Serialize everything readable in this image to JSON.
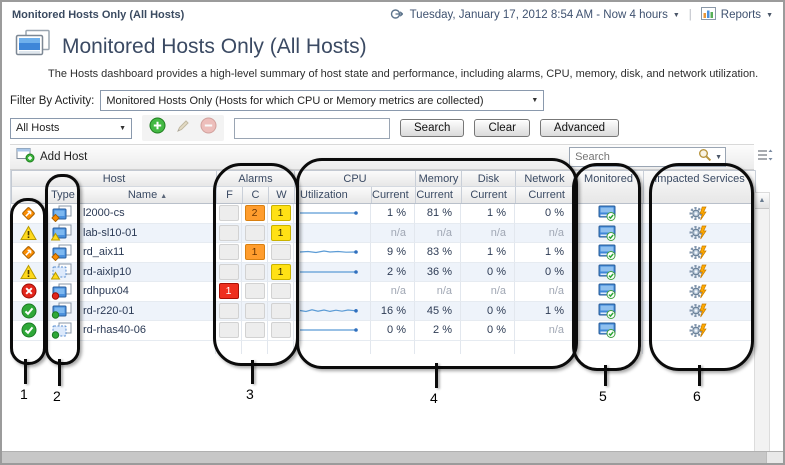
{
  "breadcrumb": {
    "label": "Monitored Hosts Only (All Hosts)"
  },
  "header": {
    "time_range": "Tuesday, January 17, 2012 8:54 AM - Now 4 hours",
    "reports": "Reports"
  },
  "page": {
    "title": "Monitored Hosts Only (All Hosts)",
    "description": "The Hosts dashboard provides a high-level summary of host state and performance, including alarms, CPU, memory, disk, and network utilization."
  },
  "filter": {
    "label": "Filter By Activity:",
    "value": "Monitored Hosts Only (Hosts for which CPU or Memory metrics are collected)"
  },
  "toolbar": {
    "scope": "All Hosts",
    "filter_value": "",
    "search": "Search",
    "clear": "Clear",
    "advanced": "Advanced"
  },
  "table_toolbar": {
    "add_host": "Add Host",
    "search_placeholder": "Search"
  },
  "table": {
    "groups": {
      "host": "Host",
      "alarms": "Alarms",
      "cpu": "CPU",
      "memory": "Memory",
      "disk": "Disk",
      "network": "Network",
      "monitored": "Monitored",
      "impacted": "Impacted Services"
    },
    "columns": {
      "type": "Type",
      "name": "Name",
      "sort": "▲",
      "f": "F",
      "c": "C",
      "w": "W",
      "utilization": "Utilization",
      "current": "Current"
    },
    "rows": [
      {
        "name": "l2000-cs",
        "status": "critical",
        "type": "physical",
        "badge": "critical",
        "f": "",
        "c": "2",
        "w": "1",
        "spark": "flat",
        "cpu": "1 %",
        "memory": "81 %",
        "disk": "1 %",
        "network": "0 %"
      },
      {
        "name": "lab-sl10-01",
        "status": "warning",
        "type": "physical",
        "badge": "warning",
        "f": "",
        "c": "",
        "w": "1",
        "spark": null,
        "cpu": "n/a",
        "memory": "n/a",
        "disk": "n/a",
        "network": "n/a"
      },
      {
        "name": "rd_aix11",
        "status": "critical",
        "type": "physical",
        "badge": "critical",
        "f": "",
        "c": "1",
        "w": "",
        "spark": "bumpy",
        "cpu": "9 %",
        "memory": "83 %",
        "disk": "1 %",
        "network": "1 %"
      },
      {
        "name": "rd-aixlp10",
        "status": "warning",
        "type": "virtual",
        "badge": "warning",
        "f": "",
        "c": "",
        "w": "1",
        "spark": "flat",
        "cpu": "2 %",
        "memory": "36 %",
        "disk": "0 %",
        "network": "0 %"
      },
      {
        "name": "rdhpux04",
        "status": "fatal",
        "type": "physical",
        "badge": "fatal",
        "f": "1",
        "c": "",
        "w": "",
        "spark": null,
        "cpu": "n/a",
        "memory": "n/a",
        "disk": "n/a",
        "network": "n/a"
      },
      {
        "name": "rd-r220-01",
        "status": "normal",
        "type": "physical",
        "badge": "normal",
        "f": "",
        "c": "",
        "w": "",
        "spark": "wavy",
        "cpu": "16 %",
        "memory": "45 %",
        "disk": "0 %",
        "network": "1 %"
      },
      {
        "name": "rd-rhas40-06",
        "status": "normal",
        "type": "virtual",
        "badge": "normal",
        "f": "",
        "c": "",
        "w": "",
        "spark": "flat",
        "cpu": "0 %",
        "memory": "2 %",
        "disk": "0 %",
        "network": "n/a"
      }
    ]
  },
  "sparkline_shapes": {
    "flat": [
      [
        2,
        8
      ],
      [
        16,
        8
      ],
      [
        30,
        8
      ],
      [
        44,
        8
      ],
      [
        58,
        8
      ]
    ],
    "bumpy": [
      [
        2,
        8
      ],
      [
        10,
        7.5
      ],
      [
        18,
        8.5
      ],
      [
        26,
        7
      ],
      [
        32,
        8
      ],
      [
        40,
        7.5
      ],
      [
        48,
        8.2
      ],
      [
        58,
        8
      ]
    ],
    "wavy": [
      [
        2,
        7.5
      ],
      [
        8,
        8.5
      ],
      [
        14,
        6.8
      ],
      [
        20,
        8.2
      ],
      [
        26,
        7
      ],
      [
        32,
        8.4
      ],
      [
        38,
        7.2
      ],
      [
        44,
        8.2
      ],
      [
        50,
        7
      ],
      [
        58,
        7.8
      ]
    ]
  },
  "callouts": {
    "labels": [
      "1",
      "2",
      "3",
      "4",
      "5",
      "6"
    ]
  },
  "colors": {
    "accent_blue": "#3e86d8",
    "fatal": "#ee2e1e",
    "critical": "#ff9d2e",
    "warning": "#ffe115",
    "normal": "#2fa838",
    "sparkline": "#5b9bd5"
  }
}
